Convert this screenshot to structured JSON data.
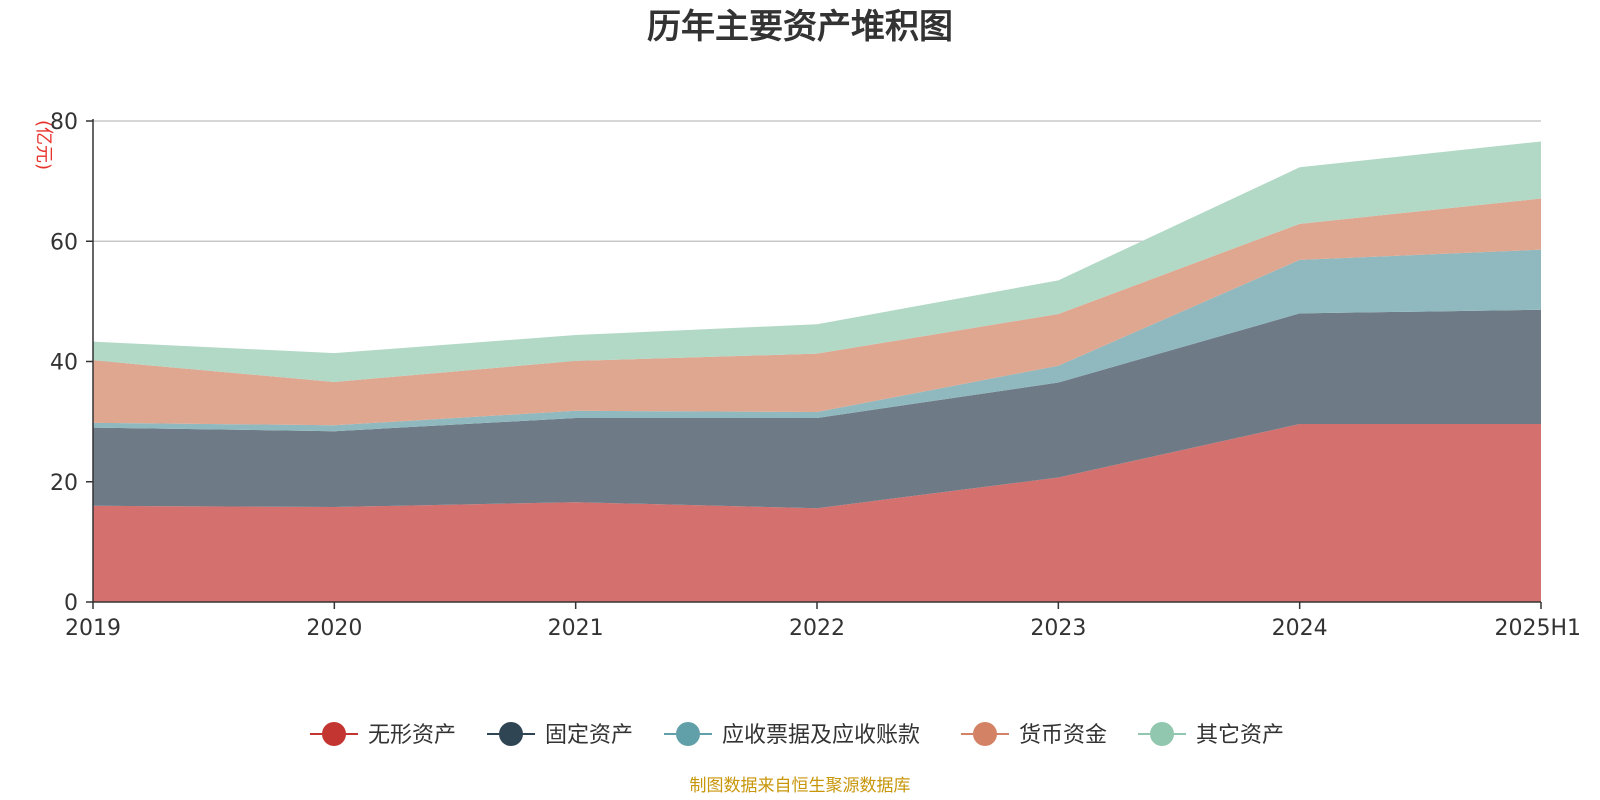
{
  "chart_data": {
    "type": "area",
    "stacked": true,
    "title": "历年主要资产堆积图",
    "unit_label": "(亿元)",
    "source_note": "制图数据来自恒生聚源数据库",
    "categories": [
      "2019",
      "2020",
      "2021",
      "2022",
      "2023",
      "2024",
      "2025H1"
    ],
    "ylim": [
      0,
      80
    ],
    "yticks": [
      0,
      20,
      40,
      60,
      80
    ],
    "grid": true,
    "legend_position": "bottom",
    "series": [
      {
        "name": "无形资产",
        "color": "#c23531",
        "fill": "#d4706e",
        "values": [
          16.0,
          15.8,
          16.6,
          15.6,
          20.7,
          29.6,
          29.6
        ]
      },
      {
        "name": "固定资产",
        "color": "#2f4554",
        "fill": "#6e7b86",
        "values": [
          13.0,
          12.6,
          14.0,
          15.0,
          15.8,
          18.4,
          19.0
        ]
      },
      {
        "name": "应收票据及应收账款",
        "color": "#61a0a8",
        "fill": "#8fb9bf",
        "values": [
          0.8,
          1.0,
          1.2,
          1.0,
          2.8,
          8.9,
          10.0
        ]
      },
      {
        "name": "货币资金",
        "color": "#d48265",
        "fill": "#dfa690",
        "values": [
          10.4,
          7.2,
          8.3,
          9.7,
          8.6,
          6.0,
          8.5
        ]
      },
      {
        "name": "其它资产",
        "color": "#91c7ae",
        "fill": "#b2d8c6",
        "values": [
          3.1,
          4.8,
          4.3,
          4.9,
          5.6,
          9.4,
          9.5
        ]
      }
    ]
  }
}
